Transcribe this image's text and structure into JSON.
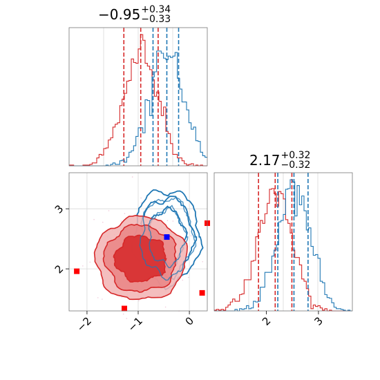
{
  "chart_data": [
    {
      "type": "histogram",
      "panel": "marginal-x",
      "title": {
        "value": "−0.95",
        "plus": "+0.34",
        "minus": "−0.33"
      },
      "xlim": [
        -2.35,
        0.35
      ],
      "series": [
        {
          "color": "#d62728",
          "median": -0.95,
          "q16": -1.28,
          "q84": -0.61
        },
        {
          "color": "#1f77b4",
          "median": -0.44,
          "q16": -0.71,
          "q84": -0.21
        }
      ]
    },
    {
      "type": "histogram",
      "panel": "marginal-y",
      "title": {
        "value": "2.17",
        "plus": "+0.32",
        "minus": "−0.32"
      },
      "xlim": [
        1.0,
        3.65
      ],
      "xticks": [
        "2",
        "3"
      ],
      "series": [
        {
          "color": "#d62728",
          "median": 2.17,
          "q16": 1.85,
          "q84": 2.49
        },
        {
          "color": "#1f77b4",
          "median": 2.53,
          "q16": 2.22,
          "q84": 2.8
        }
      ]
    },
    {
      "type": "scatter",
      "panel": "joint",
      "xlim": [
        -2.35,
        0.35
      ],
      "ylim": [
        1.3,
        3.6
      ],
      "xticks": [
        "−2",
        "−1",
        "0"
      ],
      "yticks": [
        "2",
        "3"
      ],
      "red_contour_center": [
        -0.95,
        2.17
      ],
      "blue_contour_center": [
        -0.44,
        2.53
      ],
      "red_points": [
        [
          -2.2,
          1.96
        ],
        [
          -1.27,
          1.34
        ],
        [
          0.35,
          2.76
        ],
        [
          0.25,
          1.6
        ]
      ],
      "blue_points": [
        [
          -0.44,
          2.53
        ]
      ]
    }
  ]
}
